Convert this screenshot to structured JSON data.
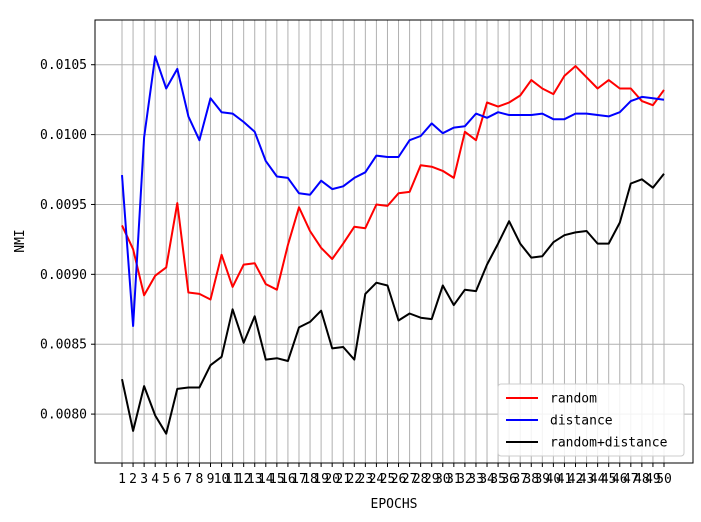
{
  "chart_data": {
    "type": "line",
    "title": "",
    "xlabel": "EPOCHS",
    "ylabel": "NMI",
    "x": [
      1,
      2,
      3,
      4,
      5,
      6,
      7,
      8,
      9,
      10,
      11,
      12,
      13,
      14,
      15,
      16,
      17,
      18,
      19,
      20,
      21,
      22,
      23,
      24,
      25,
      26,
      27,
      28,
      29,
      30,
      31,
      32,
      33,
      34,
      35,
      36,
      37,
      38,
      39,
      40,
      41,
      42,
      43,
      44,
      45,
      46,
      47,
      48,
      49,
      50
    ],
    "ylim": [
      0.00765,
      0.01082
    ],
    "yticks": [
      "0.0080",
      "0.0085",
      "0.0090",
      "0.0095",
      "0.0100",
      "0.0105"
    ],
    "grid": true,
    "legend_position": "lower-right",
    "series": [
      {
        "name": "random",
        "color": "#ff0000",
        "values": [
          0.00935,
          0.00918,
          0.00885,
          0.00899,
          0.00905,
          0.00951,
          0.00887,
          0.00886,
          0.00882,
          0.00914,
          0.00891,
          0.00907,
          0.00908,
          0.00893,
          0.00889,
          0.00921,
          0.00948,
          0.00931,
          0.00919,
          0.00911,
          0.00922,
          0.00934,
          0.00933,
          0.0095,
          0.00949,
          0.00958,
          0.00959,
          0.00978,
          0.00977,
          0.00974,
          0.00969,
          0.01002,
          0.00996,
          0.01023,
          0.0102,
          0.01023,
          0.01028,
          0.01039,
          0.01033,
          0.01029,
          0.01042,
          0.01049,
          0.01041,
          0.01033,
          0.01039,
          0.01033,
          0.01033,
          0.01024,
          0.01021,
          0.01032
        ]
      },
      {
        "name": "distance",
        "color": "#0000ff",
        "values": [
          0.00971,
          0.00863,
          0.00998,
          0.01056,
          0.01033,
          0.01047,
          0.01013,
          0.00996,
          0.01026,
          0.01016,
          0.01015,
          0.01009,
          0.01002,
          0.00981,
          0.0097,
          0.00969,
          0.00958,
          0.00957,
          0.00967,
          0.00961,
          0.00963,
          0.00969,
          0.00973,
          0.00985,
          0.00984,
          0.00984,
          0.00996,
          0.00999,
          0.01008,
          0.01001,
          0.01005,
          0.01006,
          0.01015,
          0.01012,
          0.01016,
          0.01014,
          0.01014,
          0.01014,
          0.01015,
          0.01011,
          0.01011,
          0.01015,
          0.01015,
          0.01014,
          0.01013,
          0.01016,
          0.01024,
          0.01027,
          0.01026,
          0.01025
        ]
      },
      {
        "name": "random+distance",
        "color": "#000000",
        "values": [
          0.00825,
          0.00788,
          0.0082,
          0.00799,
          0.00786,
          0.00818,
          0.00819,
          0.00819,
          0.00835,
          0.00841,
          0.00875,
          0.00851,
          0.0087,
          0.00839,
          0.0084,
          0.00838,
          0.00862,
          0.00866,
          0.00874,
          0.00847,
          0.00848,
          0.00839,
          0.00886,
          0.00894,
          0.00892,
          0.00867,
          0.00872,
          0.00869,
          0.00868,
          0.00892,
          0.00878,
          0.00889,
          0.00888,
          0.00907,
          0.00922,
          0.00938,
          0.00922,
          0.00912,
          0.00913,
          0.00923,
          0.00928,
          0.0093,
          0.00931,
          0.00922,
          0.00922,
          0.00937,
          0.00965,
          0.00968,
          0.00962,
          0.00972
        ]
      }
    ]
  }
}
